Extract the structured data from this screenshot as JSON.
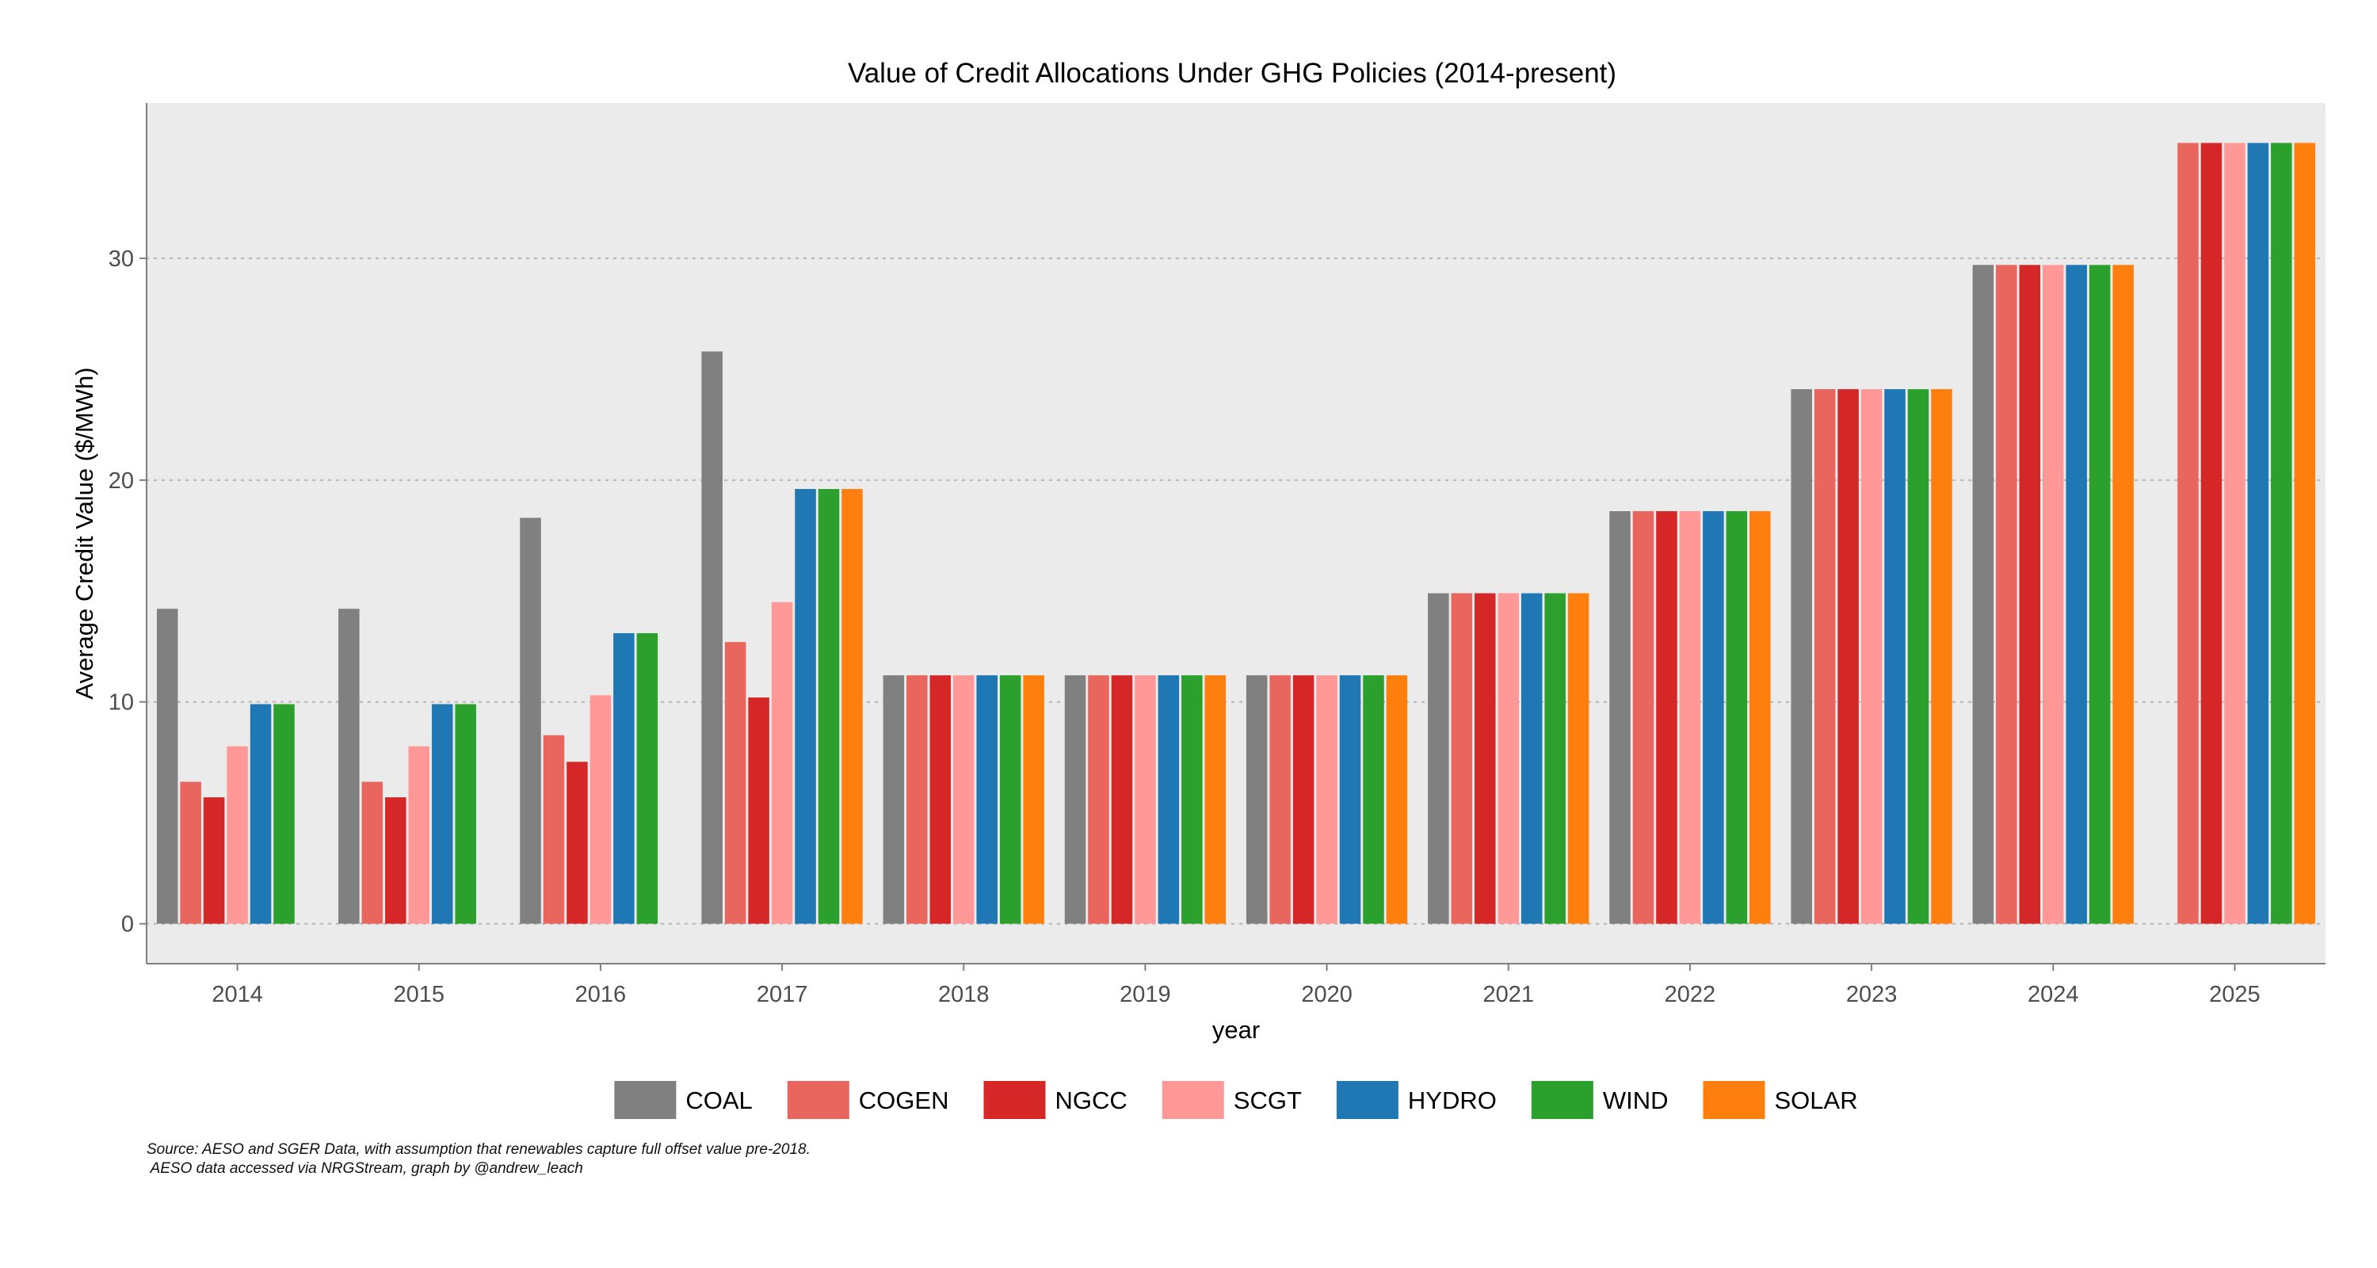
{
  "chart_data": {
    "type": "bar",
    "title": "Value of Credit Allocations Under GHG Policies (2014-present)",
    "xlabel": "year",
    "ylabel": "Average Credit Value ($/MWh)",
    "ylim": [
      -1.8,
      37
    ],
    "yticks": [
      0,
      10,
      20,
      30
    ],
    "grid": "horizontal dotted",
    "legend_position": "bottom",
    "categories": [
      "2014",
      "2015",
      "2016",
      "2017",
      "2018",
      "2019",
      "2020",
      "2021",
      "2022",
      "2023",
      "2024",
      "2025"
    ],
    "series": [
      {
        "name": "COAL",
        "color": "#808080",
        "values": [
          14.2,
          14.2,
          18.3,
          25.8,
          11.2,
          11.2,
          11.2,
          14.9,
          18.6,
          24.1,
          29.7,
          null
        ]
      },
      {
        "name": "COGEN",
        "color": "#E8665E",
        "values": [
          6.4,
          6.4,
          8.5,
          12.7,
          11.2,
          11.2,
          11.2,
          14.9,
          18.6,
          24.1,
          29.7,
          35.2
        ]
      },
      {
        "name": "NGCC",
        "color": "#D62728",
        "values": [
          5.7,
          5.7,
          7.3,
          10.2,
          11.2,
          11.2,
          11.2,
          14.9,
          18.6,
          24.1,
          29.7,
          35.2
        ]
      },
      {
        "name": "SCGT",
        "color": "#FF9896",
        "values": [
          8.0,
          8.0,
          10.3,
          14.5,
          11.2,
          11.2,
          11.2,
          14.9,
          18.6,
          24.1,
          29.7,
          35.2
        ]
      },
      {
        "name": "HYDRO",
        "color": "#1F77B4",
        "values": [
          9.9,
          9.9,
          13.1,
          19.6,
          11.2,
          11.2,
          11.2,
          14.9,
          18.6,
          24.1,
          29.7,
          35.2
        ]
      },
      {
        "name": "WIND",
        "color": "#2CA02C",
        "values": [
          9.9,
          9.9,
          13.1,
          19.6,
          11.2,
          11.2,
          11.2,
          14.9,
          18.6,
          24.1,
          29.7,
          35.2
        ]
      },
      {
        "name": "SOLAR",
        "color": "#FF7F0E",
        "values": [
          null,
          null,
          null,
          19.6,
          11.2,
          11.2,
          11.2,
          14.9,
          18.6,
          24.1,
          29.7,
          35.2
        ]
      }
    ]
  },
  "caption": {
    "line1": "Source: AESO and SGER Data, with assumption that renewables capture full offset value pre-2018.",
    "line2": " AESO data accessed via NRGStream, graph by @andrew_leach"
  },
  "colors": {
    "panel_background": "#EBEBEB",
    "grid": "#BDBDBD",
    "axis_text": "#4D4D4D"
  }
}
